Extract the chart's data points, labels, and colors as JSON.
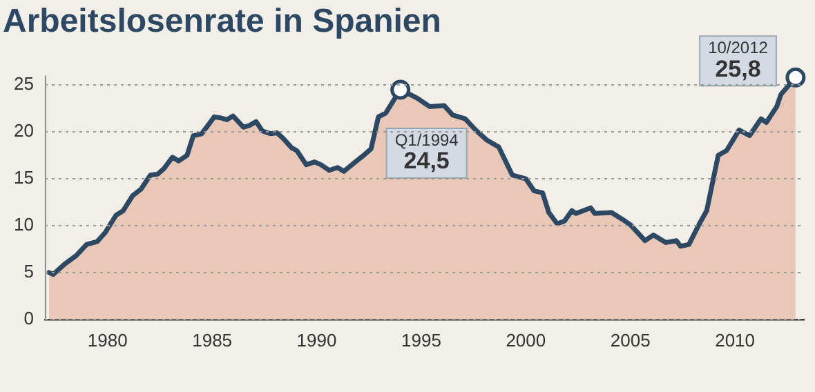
{
  "chart_data": {
    "type": "area",
    "title": "Arbeitslosenrate in Spanien",
    "x": [
      1977.2,
      1977.4,
      1977.95,
      1978.5,
      1979.0,
      1979.5,
      1979.9,
      1980.4,
      1980.75,
      1981.2,
      1981.6,
      1982.05,
      1982.4,
      1982.7,
      1983.1,
      1983.4,
      1983.8,
      1984.1,
      1984.5,
      1985.1,
      1985.4,
      1985.7,
      1986.0,
      1986.5,
      1986.8,
      1987.1,
      1987.4,
      1987.8,
      1988.1,
      1988.4,
      1988.8,
      1989.05,
      1989.5,
      1989.9,
      1990.2,
      1990.6,
      1991.0,
      1991.3,
      1991.85,
      1992.3,
      1992.6,
      1992.95,
      1993.3,
      1994.0,
      1994.8,
      1995.4,
      1996.1,
      1996.5,
      1997.1,
      1997.6,
      1998.15,
      1998.7,
      1999.35,
      2000.0,
      2000.4,
      2000.8,
      2001.1,
      2001.5,
      2001.85,
      2002.2,
      2002.4,
      2003.1,
      2003.3,
      2004.1,
      2004.6,
      2005.0,
      2005.7,
      2006.1,
      2006.7,
      2007.2,
      2007.4,
      2007.8,
      2008.3,
      2008.65,
      2009.2,
      2009.6,
      2010.2,
      2010.7,
      2011.25,
      2011.5,
      2012.0,
      2012.2,
      2012.9
    ],
    "series": [
      {
        "color": "#e9c8b7",
        "values": [
          5.0,
          4.8,
          5.9,
          6.8,
          8.0,
          8.3,
          9.3,
          11.1,
          11.6,
          13.2,
          13.9,
          15.4,
          15.5,
          16.1,
          17.3,
          16.9,
          17.5,
          19.6,
          19.8,
          21.6,
          21.5,
          21.3,
          21.7,
          20.5,
          20.7,
          21.1,
          20.1,
          19.8,
          19.9,
          19.3,
          18.3,
          18.0,
          16.5,
          16.8,
          16.5,
          15.9,
          16.2,
          15.8,
          16.8,
          17.6,
          18.2,
          21.6,
          22.0,
          24.5,
          23.6,
          22.7,
          22.8,
          21.8,
          21.4,
          20.2,
          19.1,
          18.4,
          15.4,
          15.0,
          13.7,
          13.5,
          11.4,
          10.2,
          10.5,
          11.6,
          11.3,
          11.9,
          11.3,
          11.4,
          10.7,
          10.1,
          8.4,
          9.0,
          8.2,
          8.4,
          7.8,
          8.0,
          10.2,
          11.6,
          17.5,
          18.0,
          20.2,
          19.6,
          21.4,
          21.0,
          22.7,
          24.0,
          25.8
        ]
      },
      {
        "type": "line",
        "color": "#2d4863",
        "values": [
          5.0,
          4.8,
          5.9,
          6.8,
          8.0,
          8.3,
          9.3,
          11.1,
          11.6,
          13.2,
          13.9,
          15.4,
          15.5,
          16.1,
          17.3,
          16.9,
          17.5,
          19.6,
          19.8,
          21.6,
          21.5,
          21.3,
          21.7,
          20.5,
          20.7,
          21.1,
          20.1,
          19.8,
          19.9,
          19.3,
          18.3,
          18.0,
          16.5,
          16.8,
          16.5,
          15.9,
          16.2,
          15.8,
          16.8,
          17.6,
          18.2,
          21.6,
          22.0,
          24.5,
          23.6,
          22.7,
          22.8,
          21.8,
          21.4,
          20.2,
          19.1,
          18.4,
          15.4,
          15.0,
          13.7,
          13.5,
          11.4,
          10.2,
          10.5,
          11.6,
          11.3,
          11.9,
          11.3,
          11.4,
          10.7,
          10.1,
          8.4,
          9.0,
          8.2,
          8.4,
          7.8,
          8.0,
          10.2,
          11.6,
          17.5,
          18.0,
          20.2,
          19.6,
          21.4,
          21.0,
          22.7,
          24.0,
          25.8
        ]
      }
    ],
    "xlim": [
      1977,
      2013.3
    ],
    "xticks": [
      1980,
      1985,
      1990,
      1995,
      2000,
      2005,
      2010
    ],
    "ylim": [
      0,
      26
    ],
    "yticks": [
      0,
      5,
      10,
      15,
      20,
      25
    ],
    "grid": "y",
    "marker": "none",
    "legend": false,
    "annotations": [
      {
        "text": "Q1/1994\n24,5",
        "x": 1994.0,
        "y": 24.5
      },
      {
        "text": "10/2012\n25,8",
        "x": 2012.9,
        "y": 25.8
      }
    ]
  }
}
